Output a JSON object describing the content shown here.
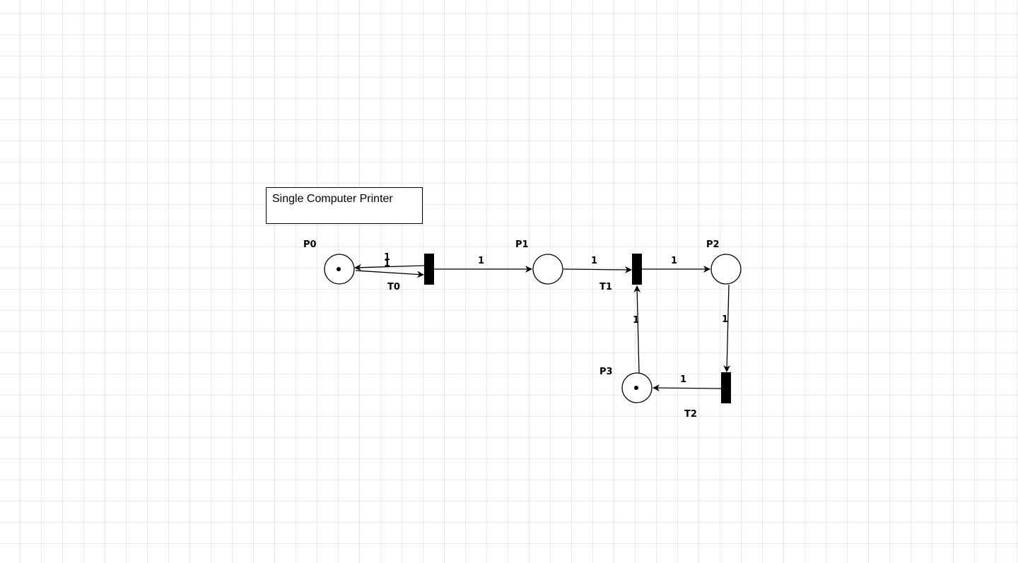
{
  "note": {
    "text": "Single Computer Printer"
  },
  "places": [
    {
      "id": "p0",
      "label": "P0",
      "token": true
    },
    {
      "id": "p1",
      "label": "P1",
      "token": false
    },
    {
      "id": "p2",
      "label": "P2",
      "token": false
    },
    {
      "id": "p3",
      "label": "P3",
      "token": true
    }
  ],
  "transitions": [
    {
      "id": "t0",
      "label": "T0"
    },
    {
      "id": "t1",
      "label": "T1"
    },
    {
      "id": "t2",
      "label": "T2"
    }
  ],
  "arcs": [
    {
      "from": "T0",
      "to": "P0",
      "weight": "1"
    },
    {
      "from": "P0",
      "to": "T0",
      "weight": "1"
    },
    {
      "from": "T0",
      "to": "P1",
      "weight": "1"
    },
    {
      "from": "P1",
      "to": "T1",
      "weight": "1"
    },
    {
      "from": "T1",
      "to": "P2",
      "weight": "1"
    },
    {
      "from": "P2",
      "to": "T2",
      "weight": "1"
    },
    {
      "from": "T2",
      "to": "P3",
      "weight": "1"
    },
    {
      "from": "P3",
      "to": "T1",
      "weight": "1"
    }
  ]
}
